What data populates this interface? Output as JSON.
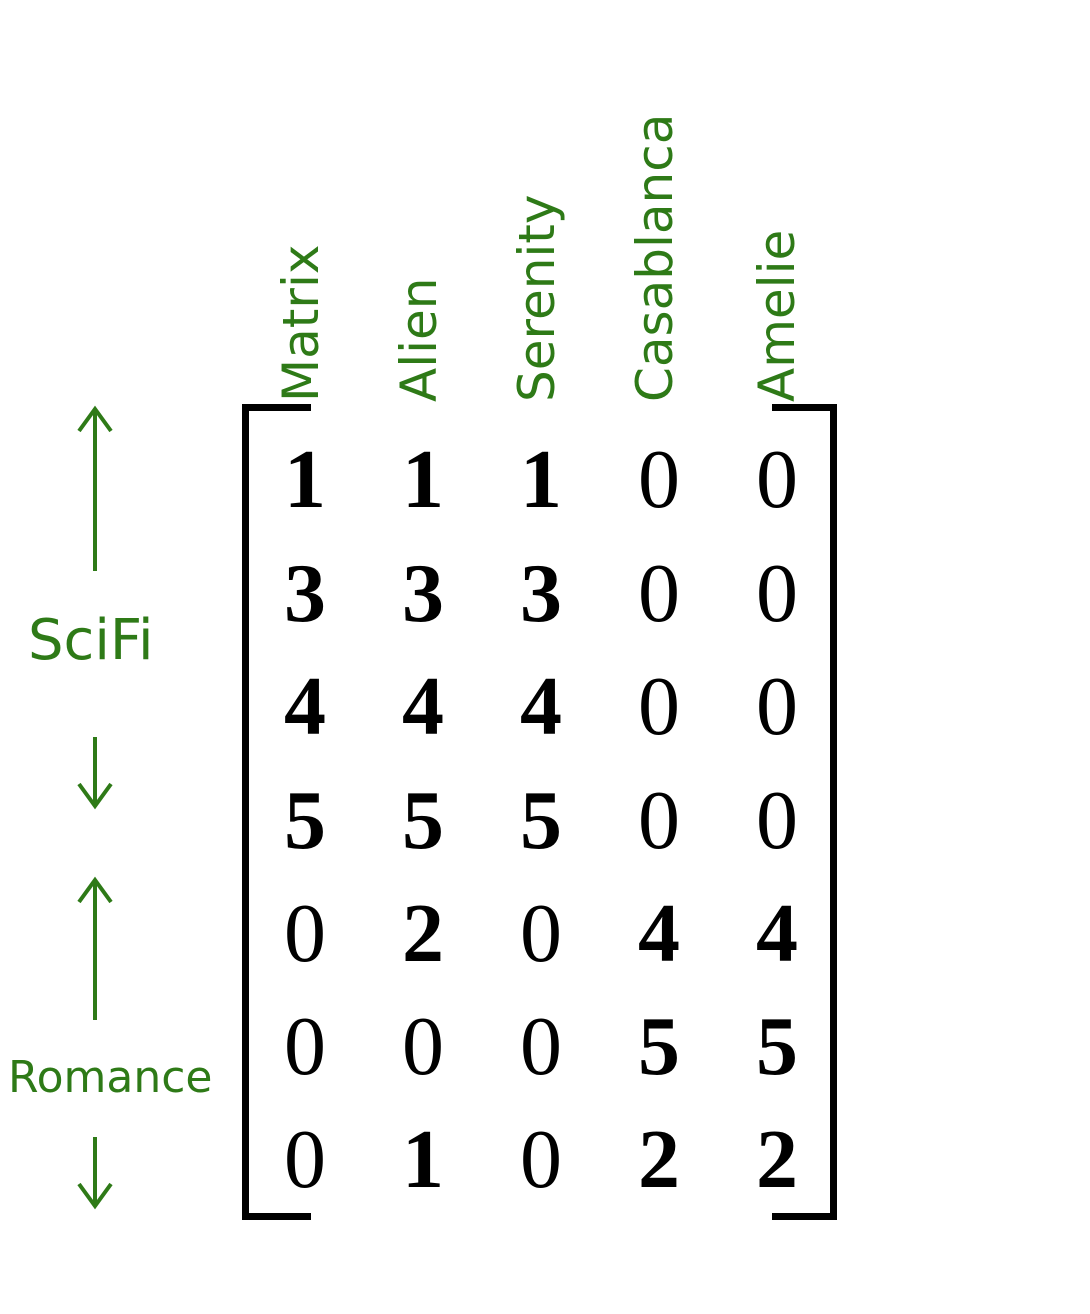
{
  "columns": [
    "Matrix",
    "Alien",
    "Serenity",
    "Casablanca",
    "Amelie"
  ],
  "matrix": [
    [
      1,
      1,
      1,
      0,
      0
    ],
    [
      3,
      3,
      3,
      0,
      0
    ],
    [
      4,
      4,
      4,
      0,
      0
    ],
    [
      5,
      5,
      5,
      0,
      0
    ],
    [
      0,
      2,
      0,
      4,
      4
    ],
    [
      0,
      0,
      0,
      5,
      5
    ],
    [
      0,
      1,
      0,
      2,
      2
    ]
  ],
  "row_groups": [
    {
      "label": "SciFi"
    },
    {
      "label": "Romance"
    }
  ],
  "colors": {
    "label": "#2e7a17",
    "matrix": "#000000"
  }
}
